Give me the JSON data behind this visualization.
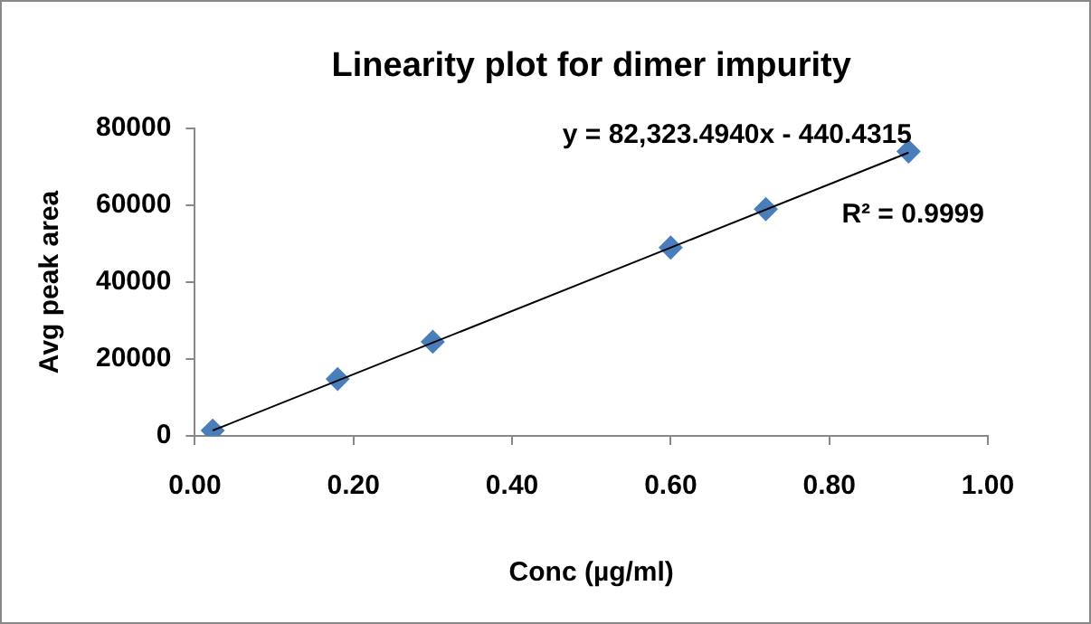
{
  "chart_data": {
    "type": "scatter",
    "title": "Linearity plot for dimer impurity",
    "xlabel": "Conc (µg/ml)",
    "ylabel": "Avg peak area",
    "x": [
      0.0225,
      0.18,
      0.3,
      0.6,
      0.72,
      0.9
    ],
    "series": [
      {
        "color": "#4a7ebb",
        "values": [
          1400,
          14800,
          24500,
          49000,
          59000,
          74000
        ]
      },
      {
        "type": "line",
        "color": "#000000",
        "marker": "none",
        "x": [
          0.0225,
          0.9
        ],
        "values": [
          1400,
          73700
        ]
      }
    ],
    "marker": "diamond",
    "xlim": [
      0,
      1
    ],
    "xticks": [
      {
        "value": 0,
        "label": "0.00"
      },
      {
        "value": 0.2,
        "label": "0.20"
      },
      {
        "value": 0.4,
        "label": "0.40"
      },
      {
        "value": 0.6,
        "label": "0.60"
      },
      {
        "value": 0.8,
        "label": "0.80"
      },
      {
        "value": 1,
        "label": "1.00"
      }
    ],
    "ylim": [
      0,
      80000
    ],
    "yticks": [
      0,
      20000,
      40000,
      60000,
      80000
    ],
    "grid": false,
    "legend": false,
    "annotations": [
      "y = 82,323.4940x - 440.4315",
      "R² = 0.9999"
    ]
  }
}
